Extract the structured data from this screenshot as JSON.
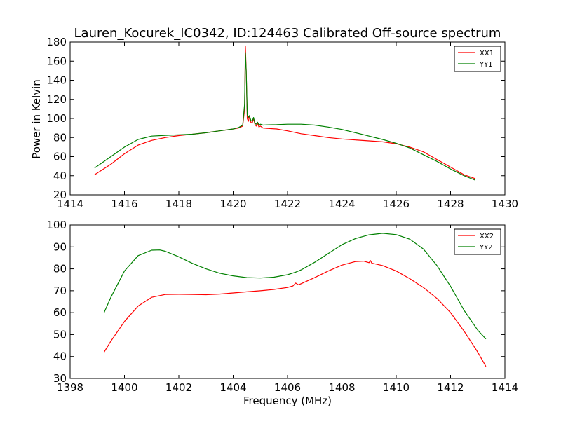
{
  "figure": {
    "title": "Lauren_Kocurek_IC0342, ID:124463 Calibrated Off-source spectrum",
    "xlabel": "Frequency (MHz)"
  },
  "chart_data": [
    {
      "type": "line",
      "title": "Lauren_Kocurek_IC0342, ID:124463 Calibrated Off-source spectrum",
      "xlabel": "",
      "ylabel": "Power in Kelvin",
      "xlim": [
        1414,
        1430
      ],
      "ylim": [
        20,
        180
      ],
      "xticks": [
        1414,
        1416,
        1418,
        1420,
        1422,
        1424,
        1426,
        1428,
        1430
      ],
      "yticks": [
        20,
        40,
        60,
        80,
        100,
        120,
        140,
        160,
        180
      ],
      "grid": false,
      "legend_position": "top-right",
      "series": [
        {
          "name": "XX1",
          "color": "#ff0000",
          "x": [
            1414.9,
            1415.5,
            1416.0,
            1416.5,
            1417.0,
            1417.5,
            1418.0,
            1418.5,
            1419.0,
            1419.5,
            1420.0,
            1420.2,
            1420.35,
            1420.42,
            1420.45,
            1420.48,
            1420.52,
            1420.56,
            1420.6,
            1420.65,
            1420.7,
            1420.75,
            1420.8,
            1420.85,
            1420.9,
            1420.95,
            1421.0,
            1421.1,
            1421.3,
            1421.6,
            1422.0,
            1422.5,
            1423.0,
            1423.5,
            1424.0,
            1424.5,
            1425.0,
            1425.5,
            1426.0,
            1426.5,
            1427.0,
            1427.5,
            1428.0,
            1428.5,
            1428.9
          ],
          "y": [
            41,
            52,
            63,
            72,
            77,
            80,
            82,
            83.5,
            85,
            87,
            89,
            90,
            92,
            110,
            176,
            150,
            100,
            97,
            102,
            96,
            95,
            100,
            94,
            92,
            95,
            91,
            92,
            90,
            89.5,
            89,
            87,
            84,
            82,
            80,
            78.5,
            77.5,
            76.5,
            75.5,
            73.5,
            70,
            65,
            57,
            49,
            41,
            37
          ]
        },
        {
          "name": "YY1",
          "color": "#008000",
          "x": [
            1414.9,
            1415.5,
            1416.0,
            1416.5,
            1417.0,
            1417.5,
            1418.0,
            1418.5,
            1419.0,
            1419.5,
            1420.0,
            1420.2,
            1420.35,
            1420.42,
            1420.45,
            1420.48,
            1420.52,
            1420.56,
            1420.6,
            1420.65,
            1420.7,
            1420.75,
            1420.8,
            1420.85,
            1420.9,
            1420.95,
            1421.0,
            1421.1,
            1421.3,
            1421.6,
            1422.0,
            1422.5,
            1423.0,
            1423.5,
            1424.0,
            1424.5,
            1425.0,
            1425.5,
            1426.0,
            1426.5,
            1427.0,
            1427.5,
            1428.0,
            1428.5,
            1428.9
          ],
          "y": [
            48,
            60,
            70,
            78,
            81.5,
            82.3,
            82.8,
            83.5,
            85,
            87,
            89,
            90.5,
            93,
            115,
            169,
            150,
            104,
            101,
            103,
            98,
            97,
            101,
            95,
            94,
            96,
            93,
            94,
            93,
            93.3,
            93.5,
            94,
            94,
            93,
            91,
            88.5,
            85,
            81.5,
            78,
            74,
            69,
            62,
            55,
            47,
            40,
            35.5
          ]
        }
      ]
    },
    {
      "type": "line",
      "title": "",
      "xlabel": "Frequency (MHz)",
      "ylabel": "",
      "xlim": [
        1398,
        1414
      ],
      "ylim": [
        30,
        100
      ],
      "xticks": [
        1398,
        1400,
        1402,
        1404,
        1406,
        1408,
        1410,
        1412,
        1414
      ],
      "yticks": [
        30,
        40,
        50,
        60,
        70,
        80,
        90,
        100
      ],
      "grid": false,
      "legend_position": "top-right",
      "series": [
        {
          "name": "XX2",
          "color": "#ff0000",
          "x": [
            1399.25,
            1399.5,
            1400.0,
            1400.5,
            1401.0,
            1401.5,
            1402.0,
            1402.5,
            1403.0,
            1403.5,
            1404.0,
            1404.5,
            1405.0,
            1405.5,
            1406.0,
            1406.2,
            1406.3,
            1406.4,
            1406.5,
            1407.0,
            1407.5,
            1408.0,
            1408.5,
            1408.8,
            1409.0,
            1409.05,
            1409.1,
            1409.5,
            1410.0,
            1410.5,
            1411.0,
            1411.5,
            1412.0,
            1412.5,
            1413.0,
            1413.3
          ],
          "y": [
            42,
            47,
            56,
            63,
            67,
            68.3,
            68.4,
            68.3,
            68.2,
            68.5,
            69,
            69.5,
            70,
            70.6,
            71.5,
            72.2,
            73.5,
            72.7,
            73.2,
            76,
            79,
            81.7,
            83.3,
            83.5,
            82.8,
            83.8,
            82.6,
            81.5,
            79,
            75.5,
            71.5,
            66.5,
            60,
            51.5,
            42,
            35.5
          ]
        },
        {
          "name": "YY2",
          "color": "#008000",
          "x": [
            1399.25,
            1399.5,
            1400.0,
            1400.5,
            1401.0,
            1401.3,
            1401.5,
            1402.0,
            1402.5,
            1403.0,
            1403.5,
            1404.0,
            1404.5,
            1405.0,
            1405.5,
            1406.0,
            1406.3,
            1406.5,
            1407.0,
            1407.5,
            1408.0,
            1408.5,
            1409.0,
            1409.5,
            1410.0,
            1410.5,
            1411.0,
            1411.5,
            1412.0,
            1412.5,
            1413.0,
            1413.3
          ],
          "y": [
            60,
            67,
            79,
            86,
            88.5,
            88.6,
            88,
            85.5,
            82.5,
            80,
            78,
            76.8,
            76,
            75.8,
            76.2,
            77.3,
            78.5,
            79.5,
            83,
            87,
            91,
            93.8,
            95.5,
            96.2,
            95.6,
            93.5,
            89,
            81.5,
            72,
            61,
            52,
            48
          ]
        }
      ]
    }
  ]
}
